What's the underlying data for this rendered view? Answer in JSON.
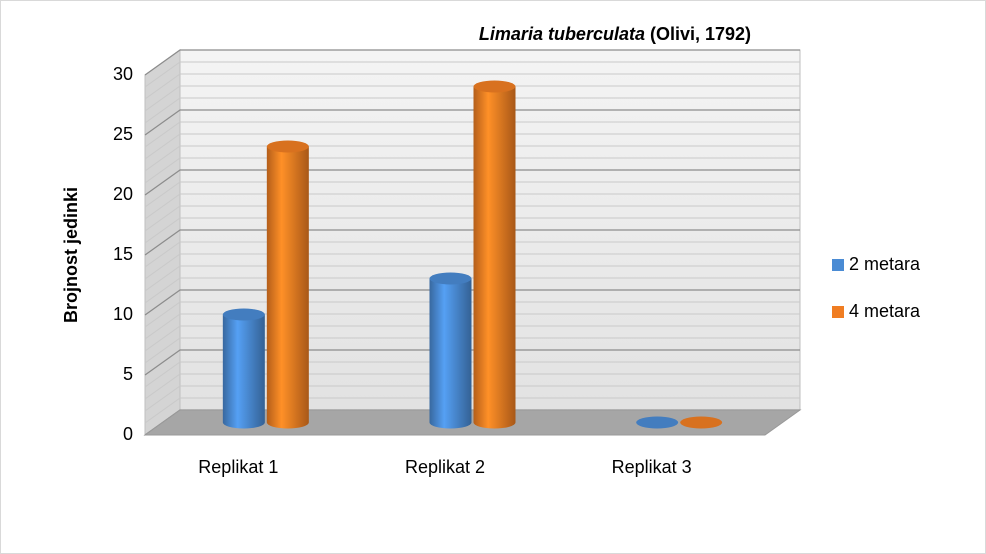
{
  "chart_data": {
    "type": "bar3d",
    "title": [
      "Limaria tuberculata",
      "(Olivi, 1792)"
    ],
    "y_label": "Brojnost jedinki",
    "categories": [
      "Replikat 1",
      "Replikat 2",
      "Replikat 3"
    ],
    "series": [
      {
        "name": "2 metara",
        "color": "#4a8bd4",
        "values": [
          9,
          12,
          0
        ]
      },
      {
        "name": "4 metara",
        "color": "#f07d22",
        "values": [
          23,
          28,
          0
        ]
      }
    ],
    "ylim": [
      0,
      30
    ],
    "yticks": [
      0,
      5,
      10,
      15,
      20,
      25,
      30
    ],
    "grid": true,
    "legend": "right"
  }
}
